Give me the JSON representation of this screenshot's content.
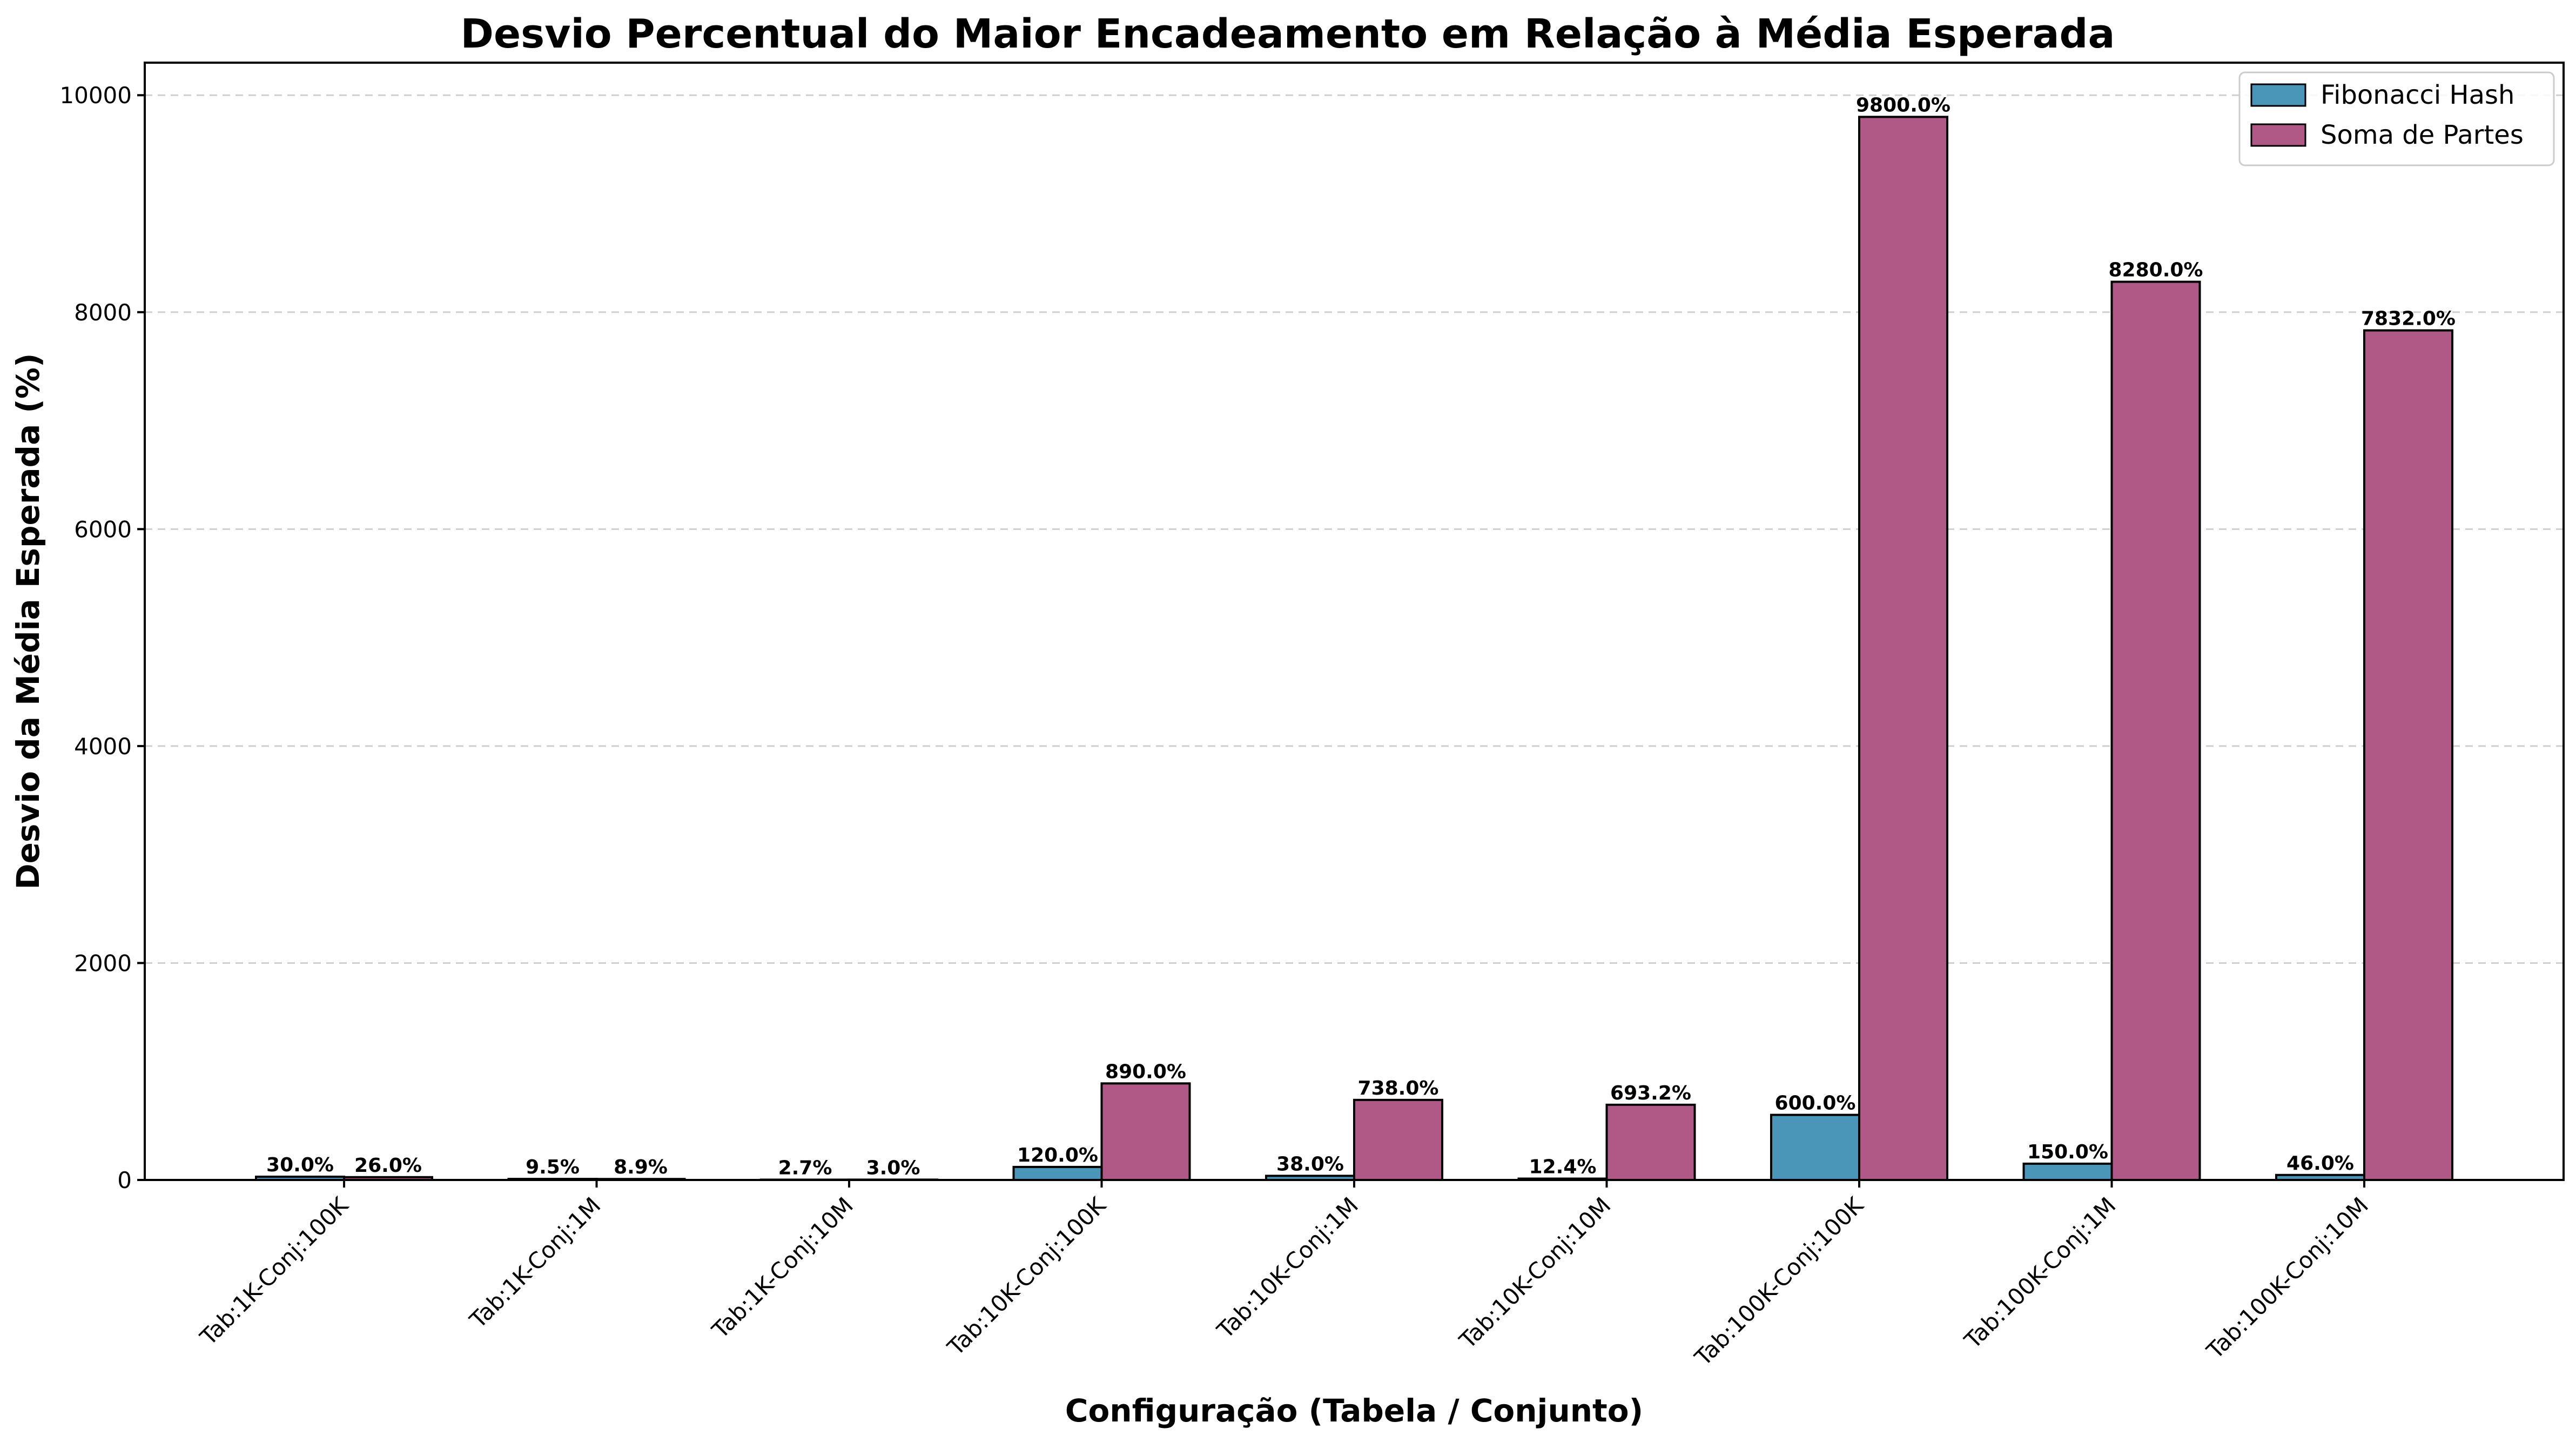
{
  "chart_data": {
    "type": "bar",
    "title": "Desvio Percentual do Maior Encadeamento em Relação à Média Esperada",
    "xlabel": "Configuração (Tabela / Conjunto)",
    "ylabel": "Desvio da Média Esperada (%)",
    "ylim": [
      0,
      10300
    ],
    "yticks": [
      0,
      2000,
      4000,
      6000,
      8000,
      10000
    ],
    "grid": "y-dashed",
    "legend_position": "top-right",
    "categories": [
      "Tab:1K-Conj:100K",
      "Tab:1K-Conj:1M",
      "Tab:1K-Conj:10M",
      "Tab:10K-Conj:100K",
      "Tab:10K-Conj:1M",
      "Tab:10K-Conj:10M",
      "Tab:100K-Conj:100K",
      "Tab:100K-Conj:1M",
      "Tab:100K-Conj:10M"
    ],
    "series": [
      {
        "name": "Fibonacci Hash",
        "color": "#4a96b8",
        "values": [
          30.0,
          9.5,
          2.7,
          120.0,
          38.0,
          12.4,
          600.0,
          150.0,
          46.0
        ],
        "labels": [
          "30.0%",
          "9.5%",
          "2.7%",
          "120.0%",
          "38.0%",
          "12.4%",
          "600.0%",
          "150.0%",
          "46.0%"
        ]
      },
      {
        "name": "Soma de Partes",
        "color": "#b05886",
        "values": [
          26.0,
          8.9,
          3.0,
          890.0,
          738.0,
          693.2,
          9800.0,
          8280.0,
          7832.0
        ],
        "labels": [
          "26.0%",
          "8.9%",
          "3.0%",
          "890.0%",
          "738.0%",
          "693.2%",
          "9800.0%",
          "8280.0%",
          "7832.0%"
        ]
      }
    ]
  }
}
